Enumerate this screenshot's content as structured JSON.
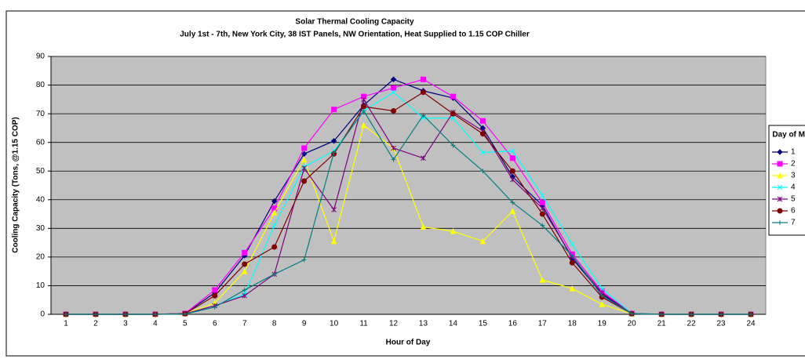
{
  "chart_data": {
    "type": "line",
    "title": "Solar Thermal Cooling Capacity",
    "subtitle": "July 1st - 7th, New York City, 38 IST Panels, NW Orientation, Heat Supplied to 1.15 COP Chiller",
    "x_label": "Hour of Day",
    "y_label": "Cooling Capacity (Tons, @1.15 COP)",
    "legend_title": "Day of Month",
    "legend": "right",
    "grid": true,
    "categories": [
      "1",
      "2",
      "3",
      "4",
      "5",
      "6",
      "7",
      "8",
      "9",
      "10",
      "11",
      "12",
      "13",
      "14",
      "15",
      "16",
      "17",
      "18",
      "19",
      "20",
      "21",
      "22",
      "23",
      "24"
    ],
    "ylim": [
      0,
      90
    ],
    "yticks": [
      0,
      10,
      20,
      30,
      40,
      50,
      60,
      70,
      80,
      90
    ],
    "series": [
      {
        "name": "1",
        "color": "#000080",
        "marker": "diamond",
        "values": [
          0,
          0,
          0,
          0,
          0.3,
          7.5,
          20.5,
          39.5,
          56,
          60.5,
          73,
          82,
          78,
          75.5,
          65,
          48,
          38,
          19.5,
          7,
          0.3,
          0,
          0,
          0,
          0
        ]
      },
      {
        "name": "2",
        "color": "#ff00ff",
        "marker": "square",
        "values": [
          0,
          0,
          0,
          0,
          0.3,
          8.5,
          21.5,
          37,
          58,
          71.5,
          76,
          79,
          82,
          76,
          67.5,
          54.5,
          39,
          21,
          8,
          0.3,
          0,
          0,
          0,
          0
        ]
      },
      {
        "name": "3",
        "color": "#ffff00",
        "marker": "triangle",
        "values": [
          0,
          0,
          0,
          0,
          0.2,
          4,
          15,
          35.5,
          54,
          25.5,
          66,
          58,
          30.5,
          29,
          25.5,
          36,
          12,
          9,
          3.5,
          0.2,
          0,
          0,
          0,
          0
        ]
      },
      {
        "name": "4",
        "color": "#00ffff",
        "marker": "x",
        "values": [
          0,
          0,
          0,
          0,
          0.2,
          3,
          7,
          31,
          51.5,
          57,
          71,
          77.5,
          68.5,
          68.5,
          56.5,
          57,
          41.5,
          24.5,
          9,
          0.3,
          0,
          0,
          0,
          0
        ]
      },
      {
        "name": "5",
        "color": "#800080",
        "marker": "star",
        "values": [
          0,
          0,
          0,
          0,
          0.2,
          3,
          6.5,
          14,
          51,
          36.5,
          75,
          58,
          54.5,
          70.5,
          64,
          47,
          37,
          20,
          7.5,
          0.2,
          0,
          0,
          0,
          0
        ]
      },
      {
        "name": "6",
        "color": "#800000",
        "marker": "circle",
        "values": [
          0,
          0,
          0,
          0,
          0.2,
          6.5,
          17.5,
          23.5,
          46.5,
          56,
          72.5,
          71,
          77.5,
          70,
          63,
          50,
          35,
          18,
          6,
          0.2,
          0,
          0,
          0,
          0
        ]
      },
      {
        "name": "7",
        "color": "#008080",
        "marker": "plus",
        "values": [
          0,
          0,
          0,
          0,
          0.1,
          2.5,
          8.5,
          14,
          19,
          56.5,
          71,
          54,
          69.5,
          59,
          50,
          39,
          31,
          20.5,
          6.5,
          0.2,
          0,
          0,
          0,
          0
        ]
      }
    ]
  }
}
